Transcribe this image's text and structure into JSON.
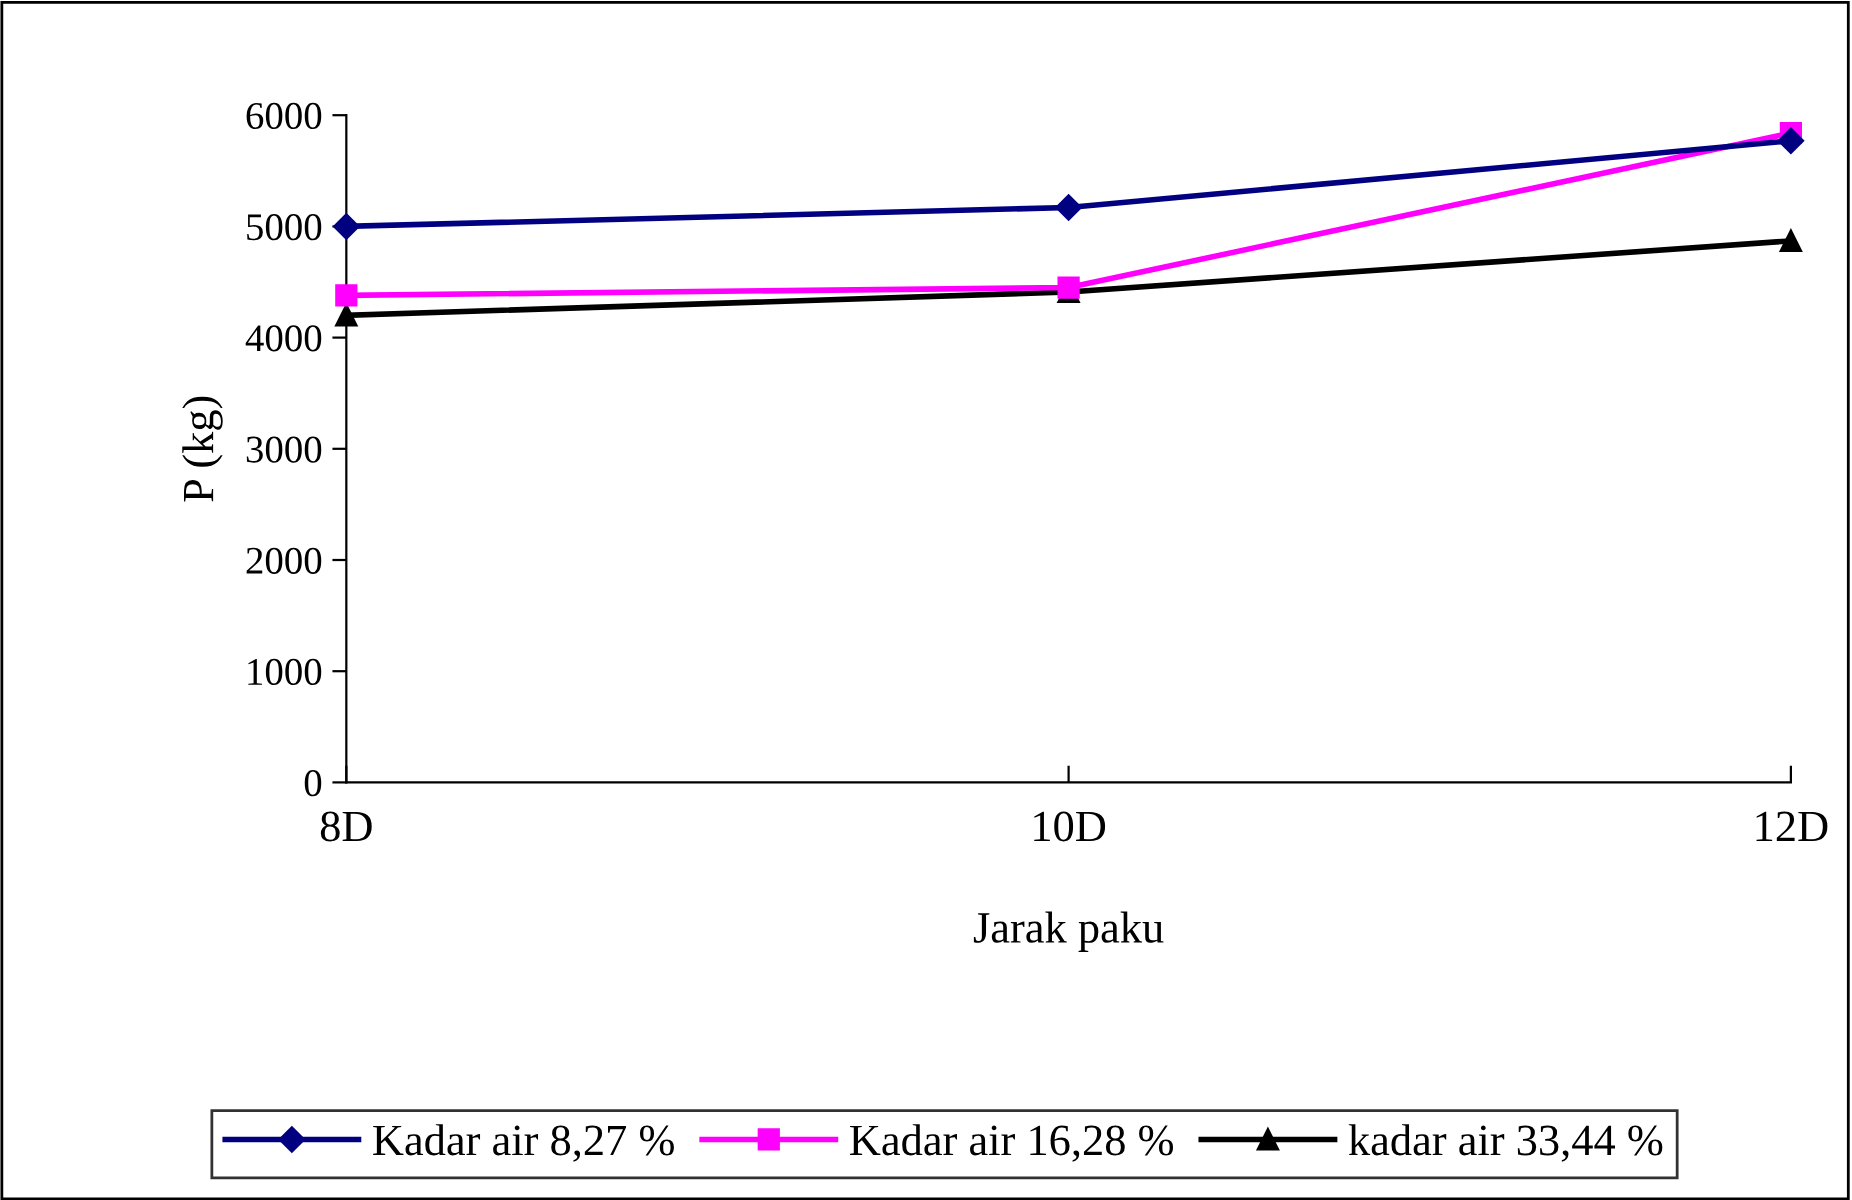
{
  "chart_data": {
    "type": "line",
    "xlabel": "Jarak paku",
    "ylabel": "P (kg)",
    "categories": [
      "8D",
      "10D",
      "12D"
    ],
    "series": [
      {
        "name": "Kadar air 8,27 %",
        "color": "#000080",
        "marker": "diamond",
        "values": [
          5000,
          5170,
          5770
        ]
      },
      {
        "name": "Kadar air 16,28 %",
        "color": "#ff00ff",
        "marker": "square",
        "values": [
          4380,
          4450,
          5840
        ]
      },
      {
        "name": "kadar air 33,44 %",
        "color": "#000000",
        "marker": "triangle",
        "values": [
          4200,
          4410,
          4870
        ]
      }
    ],
    "ylim": [
      0,
      6000
    ],
    "yticks": [
      0,
      1000,
      2000,
      3000,
      4000,
      5000,
      6000
    ],
    "grid": false,
    "legend": "bottom"
  }
}
